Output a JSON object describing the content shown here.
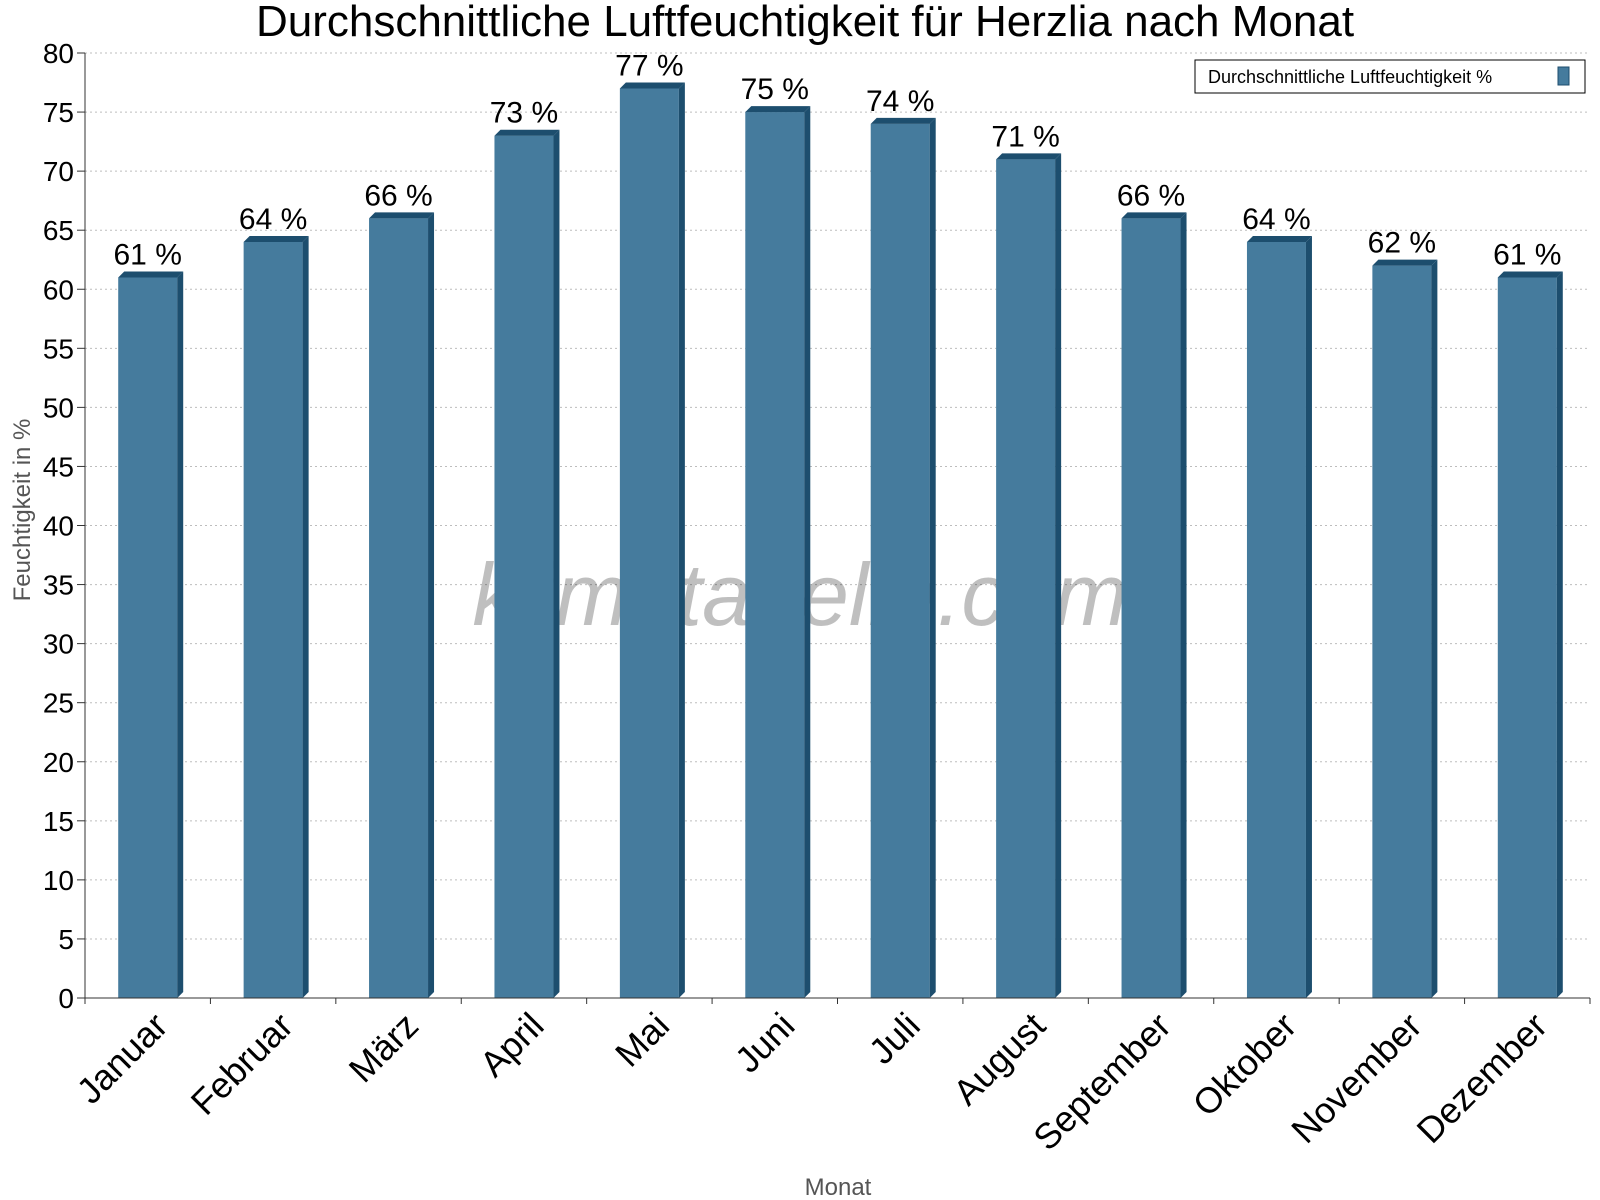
{
  "chart_data": {
    "type": "bar",
    "title": "Durchschnittliche Luftfeuchtigkeit für Herzlia nach Monat",
    "xlabel": "Monat",
    "ylabel": "Feuchtigkeit in %",
    "ylim": [
      0,
      80
    ],
    "ytick_step": 5,
    "grid": true,
    "legend_position": "top-right",
    "categories": [
      "Januar",
      "Februar",
      "März",
      "April",
      "Mai",
      "Juni",
      "Juli",
      "August",
      "September",
      "Oktober",
      "November",
      "Dezember"
    ],
    "series": [
      {
        "name": "Durchschnittliche Luftfeuchtigkeit %",
        "color": "#457b9d",
        "edge_color": "#1d4e6e",
        "values": [
          61,
          64,
          66,
          73,
          77,
          75,
          74,
          71,
          66,
          64,
          62,
          61
        ],
        "labels": [
          "61 %",
          "64 %",
          "66 %",
          "73 %",
          "77 %",
          "75 %",
          "74 %",
          "71 %",
          "66 %",
          "64 %",
          "62 %",
          "61 %"
        ]
      }
    ],
    "watermark": "klimatabelle.com"
  }
}
